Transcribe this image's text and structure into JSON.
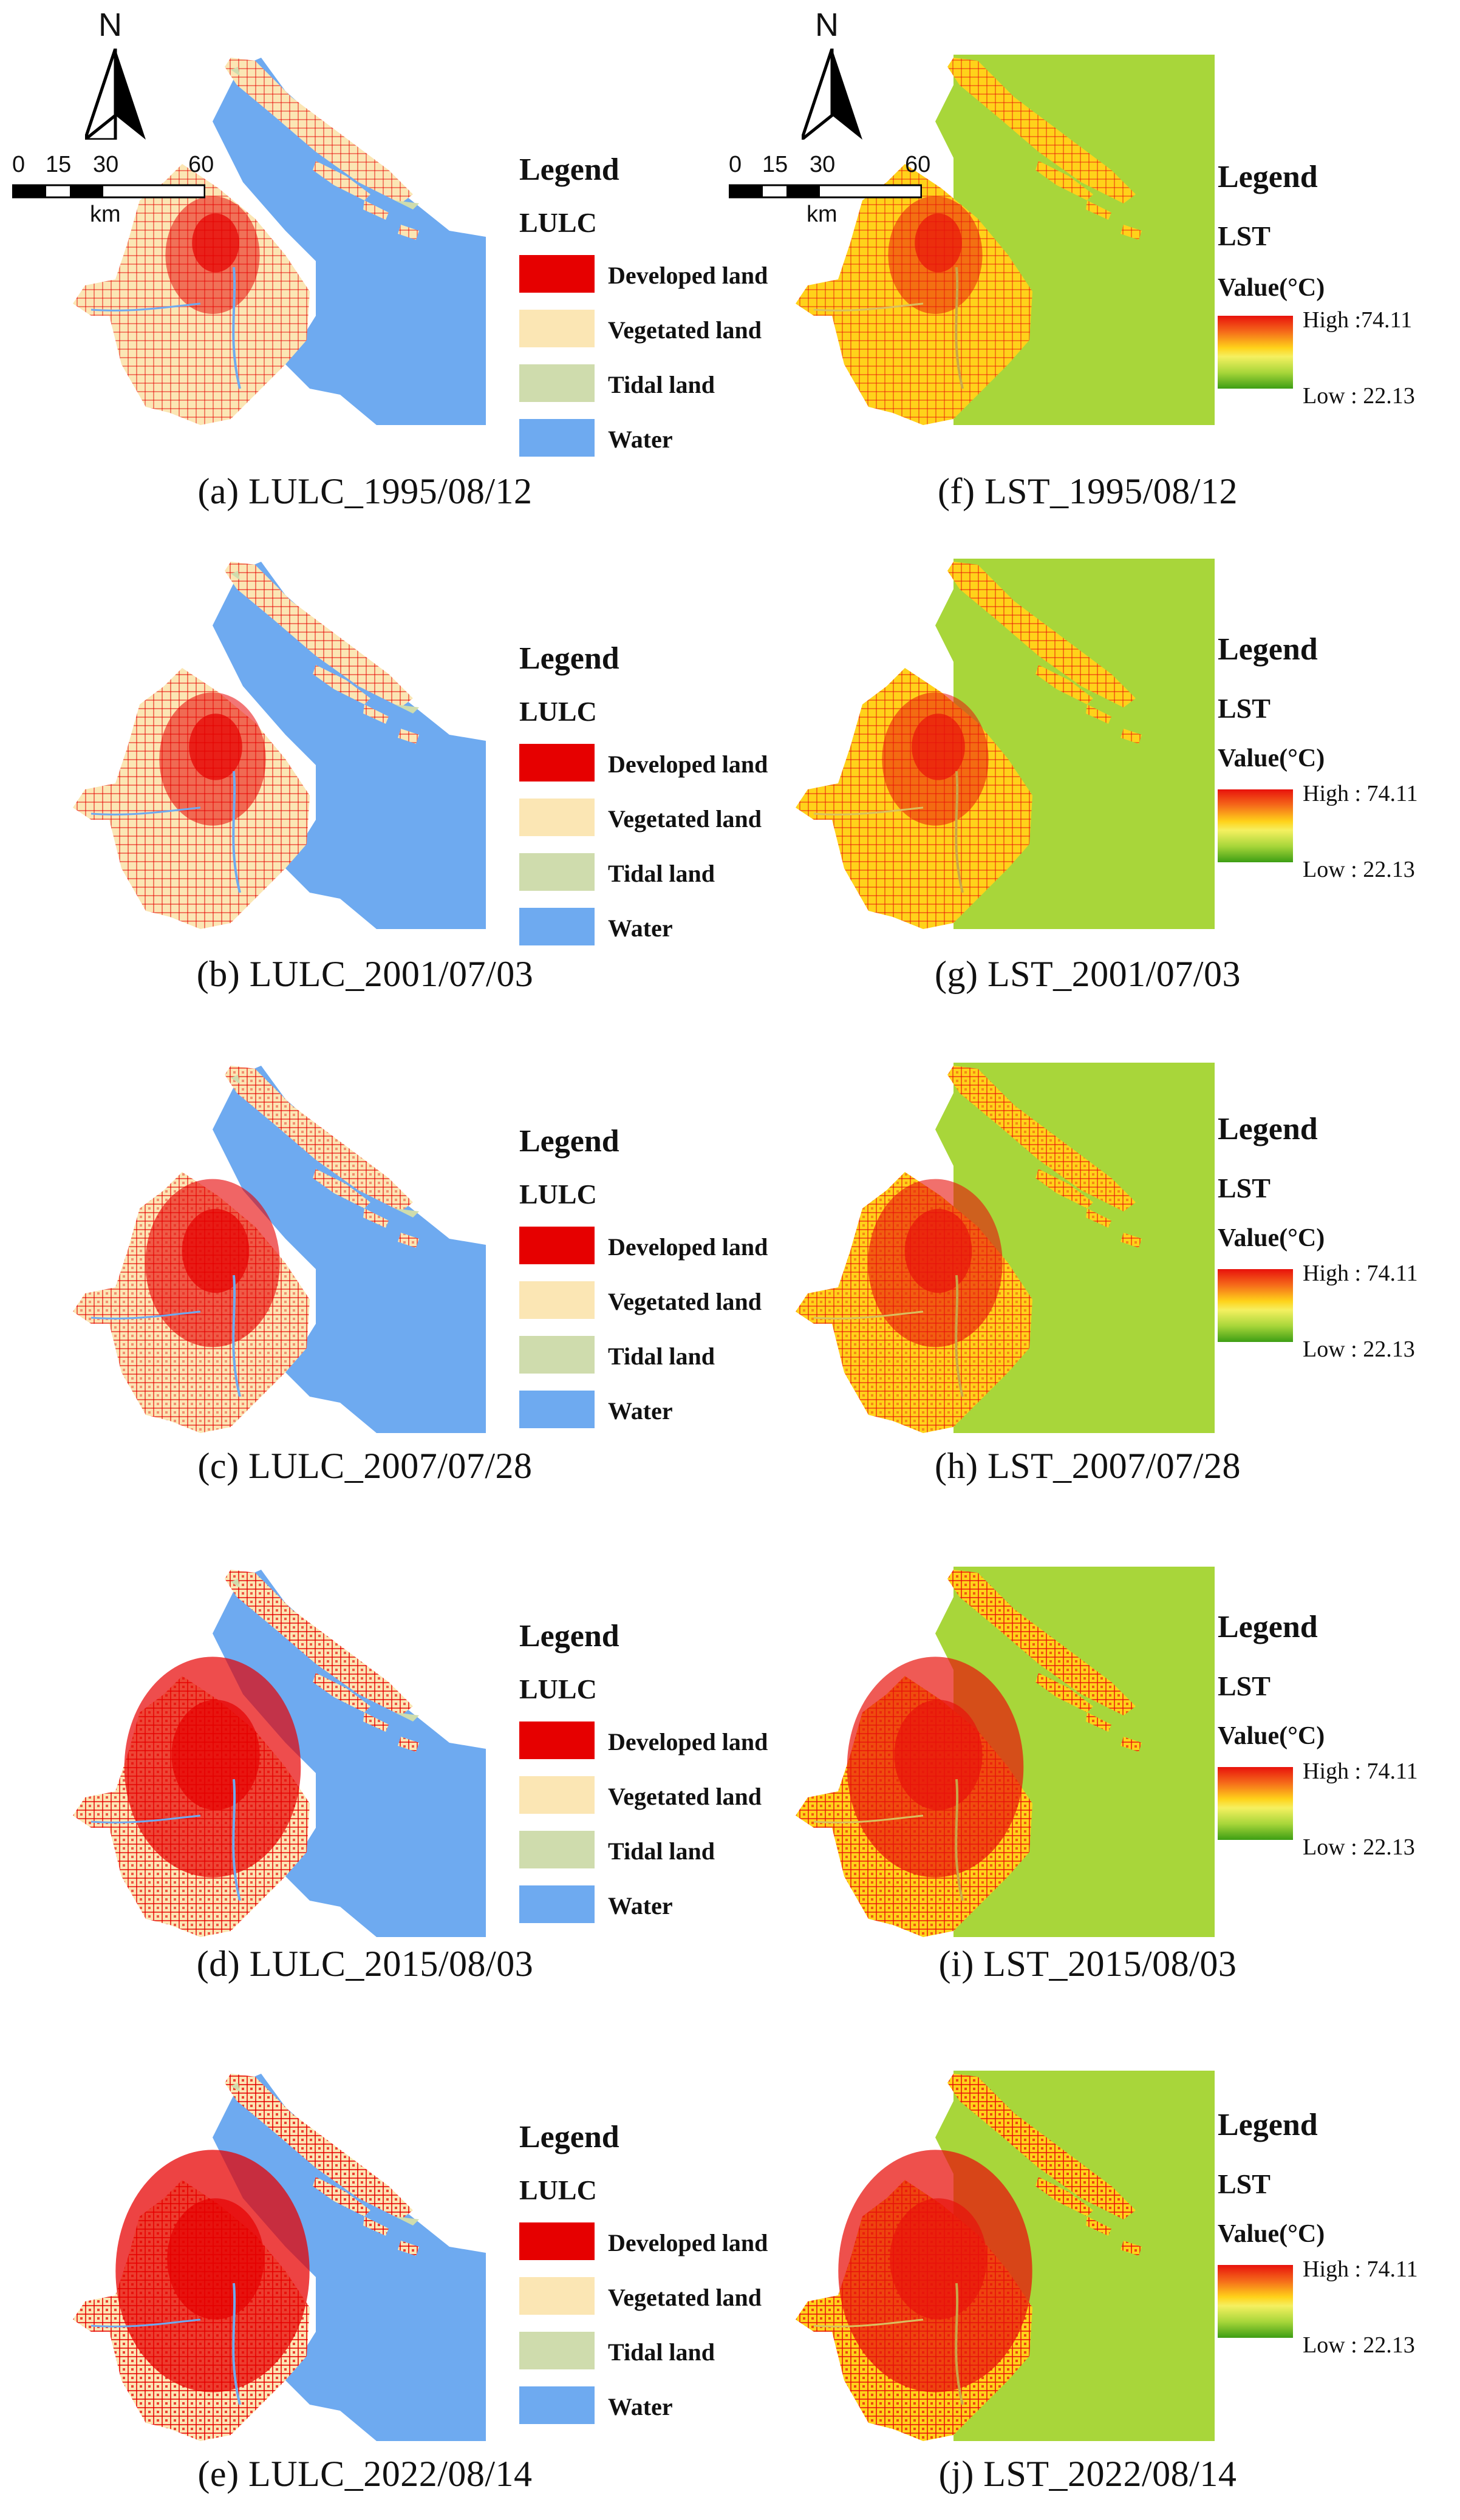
{
  "colors": {
    "developed": "#e60000",
    "vegetated": "#fbe6b4",
    "tidal": "#cfdcad",
    "water": "#6eaaf0",
    "lst_hot": "#e8120c",
    "lst_warm": "#ffd21a",
    "lst_cool": "#a8d63a"
  },
  "north_arrow": {
    "letter": "N",
    "icon": "north-arrow-icon"
  },
  "scale_bar": {
    "ticks": [
      "0",
      "15",
      "30",
      "60"
    ],
    "unit": "km"
  },
  "lulc_legend": {
    "title": "Legend",
    "subtitle": "LULC",
    "items": [
      {
        "label": "Developed land",
        "color": "#e60000"
      },
      {
        "label": "Vegetated land",
        "color": "#fbe6b4"
      },
      {
        "label": "Tidal land",
        "color": "#cfdcad"
      },
      {
        "label": "Water",
        "color": "#6eaaf0"
      }
    ]
  },
  "lst_legends": [
    {
      "title": "Legend",
      "subtitle": "LST",
      "value_label": "Value(°C)",
      "high": "High :74.11",
      "low": "Low : 22.13"
    },
    {
      "title": "Legend",
      "subtitle": "LST",
      "value_label": "Value(°C)",
      "high": "High : 74.11",
      "low": "Low : 22.13"
    },
    {
      "title": "Legend",
      "subtitle": "LST",
      "value_label": "Value(°C)",
      "high": "High : 74.11",
      "low": "Low : 22.13"
    },
    {
      "title": "Legend",
      "subtitle": "LST",
      "value_label": "Value(°C)",
      "high": "High : 74.11",
      "low": "Low : 22.13"
    },
    {
      "title": "Legend",
      "subtitle": "LST",
      "value_label": "Value(°C)",
      "high": "High : 74.11",
      "low": "Low : 22.13"
    }
  ],
  "panels": [
    {
      "caption": "(a) LULC_1995/08/12",
      "kind": "LULC",
      "developed_level": 0.15
    },
    {
      "caption": "(b) LULC_2001/07/03",
      "kind": "LULC",
      "developed_level": 0.22
    },
    {
      "caption": "(c) LULC_2007/07/28",
      "kind": "LULC",
      "developed_level": 0.38
    },
    {
      "caption": "(d) LULC_2015/08/03",
      "kind": "LULC",
      "developed_level": 0.62
    },
    {
      "caption": "(e) LULC_2022/08/14",
      "kind": "LULC",
      "developed_level": 0.72
    },
    {
      "caption": "(f) LST_1995/08/12",
      "kind": "LST",
      "developed_level": 0.15
    },
    {
      "caption": "(g) LST_2001/07/03",
      "kind": "LST",
      "developed_level": 0.22
    },
    {
      "caption": "(h) LST_2007/07/28",
      "kind": "LST",
      "developed_level": 0.38
    },
    {
      "caption": "(i) LST_2015/08/03",
      "kind": "LST",
      "developed_level": 0.62
    },
    {
      "caption": "(j) LST_2022/08/14",
      "kind": "LST",
      "developed_level": 0.72
    }
  ]
}
